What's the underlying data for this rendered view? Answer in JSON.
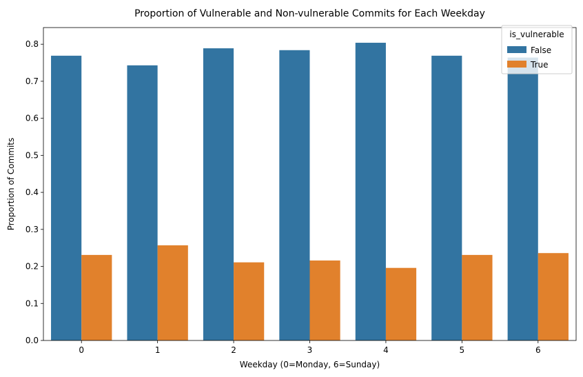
{
  "chart_data": {
    "type": "bar",
    "title": "Proportion of Vulnerable and Non-vulnerable Commits for Each Weekday",
    "xlabel": "Weekday (0=Monday, 6=Sunday)",
    "ylabel": "Proportion of Commits",
    "categories": [
      "0",
      "1",
      "2",
      "3",
      "4",
      "5",
      "6"
    ],
    "series": [
      {
        "name": "False",
        "color": "#3274a1",
        "values": [
          0.769,
          0.743,
          0.789,
          0.784,
          0.804,
          0.769,
          0.764
        ]
      },
      {
        "name": "True",
        "color": "#e1812c",
        "values": [
          0.231,
          0.257,
          0.211,
          0.216,
          0.196,
          0.231,
          0.236
        ]
      }
    ],
    "ylim": [
      0,
      0.845
    ],
    "yticks": [
      "0.0",
      "0.1",
      "0.2",
      "0.3",
      "0.4",
      "0.5",
      "0.6",
      "0.7",
      "0.8"
    ],
    "legend": {
      "title": "is_vulnerable",
      "position": "top-right"
    },
    "grid": false
  }
}
